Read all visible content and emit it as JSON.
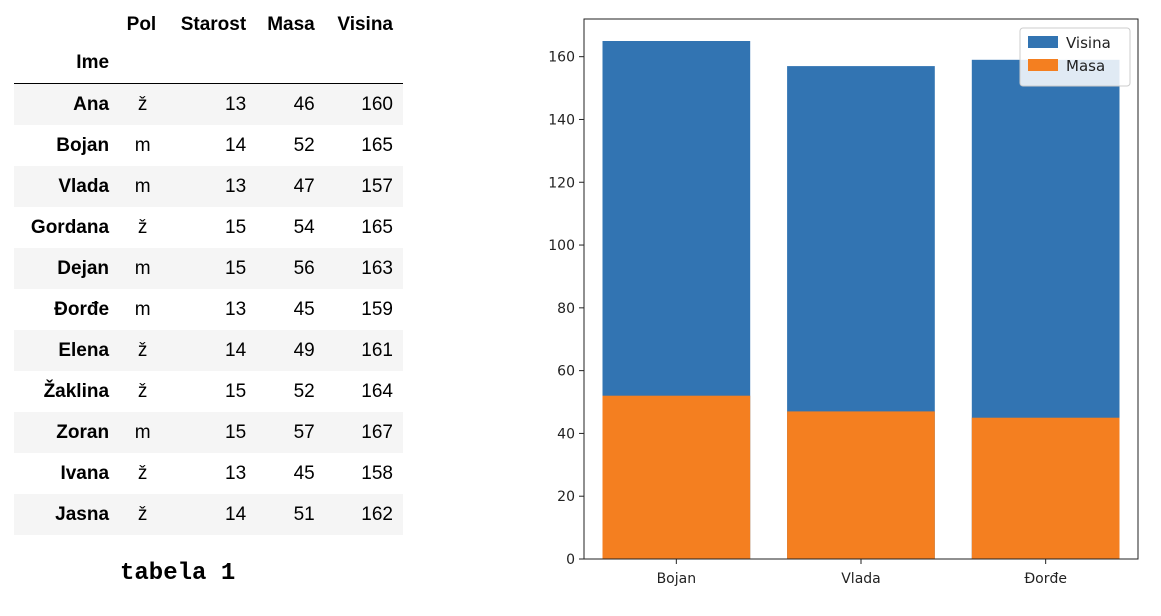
{
  "table": {
    "columns": [
      "Pol",
      "Starost",
      "Masa",
      "Visina"
    ],
    "index_name": "Ime",
    "rows": [
      {
        "ime": "Ana",
        "pol": "ž",
        "starost": "13",
        "masa": "46",
        "visina": "160"
      },
      {
        "ime": "Bojan",
        "pol": "m",
        "starost": "14",
        "masa": "52",
        "visina": "165"
      },
      {
        "ime": "Vlada",
        "pol": "m",
        "starost": "13",
        "masa": "47",
        "visina": "157"
      },
      {
        "ime": "Gordana",
        "pol": "ž",
        "starost": "15",
        "masa": "54",
        "visina": "165"
      },
      {
        "ime": "Dejan",
        "pol": "m",
        "starost": "15",
        "masa": "56",
        "visina": "163"
      },
      {
        "ime": "Đorđe",
        "pol": "m",
        "starost": "13",
        "masa": "45",
        "visina": "159"
      },
      {
        "ime": "Elena",
        "pol": "ž",
        "starost": "14",
        "masa": "49",
        "visina": "161"
      },
      {
        "ime": "Žaklina",
        "pol": "ž",
        "starost": "15",
        "masa": "52",
        "visina": "164"
      },
      {
        "ime": "Zoran",
        "pol": "m",
        "starost": "15",
        "masa": "57",
        "visina": "167"
      },
      {
        "ime": "Ivana",
        "pol": "ž",
        "starost": "13",
        "masa": "45",
        "visina": "158"
      },
      {
        "ime": "Jasna",
        "pol": "ž",
        "starost": "14",
        "masa": "51",
        "visina": "162"
      }
    ],
    "caption": "tabela 1"
  },
  "chart_data": {
    "type": "bar",
    "categories": [
      "Bojan",
      "Vlada",
      "Đorđe"
    ],
    "series": [
      {
        "name": "Visina",
        "values": [
          165,
          157,
          159
        ],
        "color": "#3274b2"
      },
      {
        "name": "Masa",
        "values": [
          52,
          47,
          45
        ],
        "color": "#f47f20"
      }
    ],
    "ylim": [
      0,
      172
    ],
    "yticks": [
      0,
      20,
      40,
      60,
      80,
      100,
      120,
      140,
      160
    ],
    "legend_position": "top-right",
    "grid": false
  }
}
